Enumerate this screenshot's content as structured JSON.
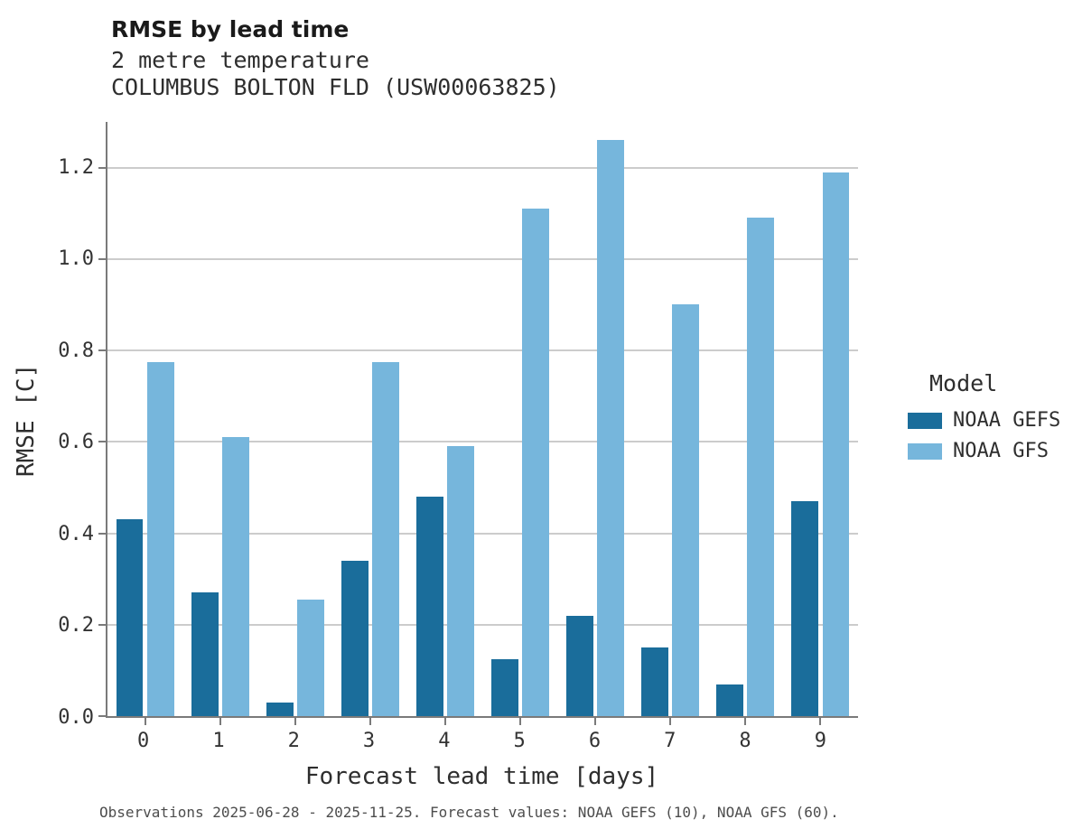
{
  "header": {
    "title": "RMSE by lead time",
    "subtitle1": "2 metre temperature",
    "subtitle2": "COLUMBUS BOLTON FLD (USW00063825)"
  },
  "chart_data": {
    "type": "bar",
    "title": "RMSE by lead time",
    "xlabel": "Forecast lead time [days]",
    "ylabel": "RMSE [C]",
    "categories": [
      0,
      1,
      2,
      3,
      4,
      5,
      6,
      7,
      8,
      9
    ],
    "series": [
      {
        "name": "NOAA GEFS",
        "color": "#1a6d9b",
        "values": [
          0.43,
          0.27,
          0.03,
          0.34,
          0.48,
          0.125,
          0.22,
          0.15,
          0.07,
          0.47
        ]
      },
      {
        "name": "NOAA GFS",
        "color": "#76b6dc",
        "values": [
          0.775,
          0.61,
          0.255,
          0.775,
          0.59,
          1.11,
          1.26,
          0.9,
          1.09,
          1.19
        ]
      }
    ],
    "ylim": [
      0,
      1.3
    ],
    "yticks": [
      0.0,
      0.2,
      0.4,
      0.6,
      0.8,
      1.0,
      1.2
    ],
    "grid": true,
    "legend_title": "Model",
    "legend_position": "right"
  },
  "footer": {
    "caption": "Observations 2025-06-28 - 2025-11-25. Forecast values: NOAA GEFS (10), NOAA GFS (60)."
  }
}
